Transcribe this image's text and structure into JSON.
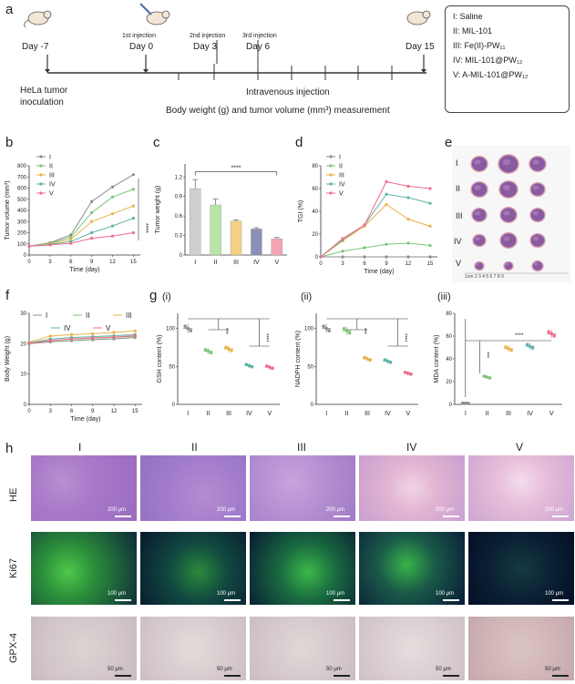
{
  "panel_a": {
    "label": "a",
    "timeline": [
      {
        "day": "Day -7",
        "above": "",
        "below": "HeLa tumor\ninoculation"
      },
      {
        "day": "Day 0",
        "above": "1st injection",
        "below": ""
      },
      {
        "day": "Day 3",
        "above": "2nd injection",
        "below": ""
      },
      {
        "day": "Day 6",
        "above": "3rd injection",
        "below": ""
      },
      {
        "day": "Day 15",
        "above": "",
        "below": ""
      }
    ],
    "iv_text": "Intravenous injection",
    "measure_text": "Body weight (g) and tumor volume (mm³) measurement",
    "legend": [
      "I: Saline",
      "II: MIL-101",
      "III: Fe(II)-PW₁₁",
      "IV: MIL-101@PW₁₂",
      "V: A-MIL-101@PW₁₂"
    ]
  },
  "panel_b": {
    "label": "b"
  },
  "panel_c": {
    "label": "c"
  },
  "panel_d": {
    "label": "d"
  },
  "panel_e": {
    "label": "e",
    "rows": [
      "I",
      "II",
      "III",
      "IV",
      "V"
    ],
    "ruler": "1cm  2    3    4    5    6    7    8    9"
  },
  "panel_f": {
    "label": "f"
  },
  "panel_g": {
    "label": "g",
    "sub": [
      "(i)",
      "(ii)",
      "(iii)"
    ]
  },
  "panel_h": {
    "label": "h",
    "cols": [
      "I",
      "II",
      "III",
      "IV",
      "V"
    ],
    "rows": [
      "HE",
      "Ki67",
      "GPX-4"
    ],
    "scale_he": "200 μm",
    "scale_ki": "100 μm",
    "scale_gpx": "50 μm"
  },
  "colors": {
    "I": "#8c8c8c",
    "II": "#7cc67a",
    "III": "#e8b34a",
    "IV": "#5db3a5",
    "V": "#f06b8a",
    "red": "#e85a4f",
    "orange": "#f0a64a",
    "green": "#8ccf7a",
    "teal": "#6fbfb0"
  },
  "chart_data": [
    {
      "id": "b",
      "type": "line",
      "xlabel": "Time (day)",
      "ylabel": "Tumor volume (mm³)",
      "x": [
        0,
        3,
        6,
        9,
        12,
        15
      ],
      "xlim": [
        0,
        16
      ],
      "ylim": [
        0,
        800
      ],
      "yticks": [
        0,
        100,
        200,
        300,
        400,
        500,
        600,
        700,
        800
      ],
      "series": [
        {
          "name": "I",
          "values": [
            80,
            110,
            180,
            480,
            610,
            720
          ]
        },
        {
          "name": "II",
          "values": [
            80,
            105,
            160,
            380,
            520,
            590
          ]
        },
        {
          "name": "III",
          "values": [
            80,
            100,
            140,
            300,
            370,
            440
          ]
        },
        {
          "name": "IV",
          "values": [
            80,
            95,
            120,
            200,
            260,
            330
          ]
        },
        {
          "name": "V",
          "values": [
            80,
            90,
            105,
            150,
            170,
            200
          ]
        }
      ],
      "annotation": "****"
    },
    {
      "id": "c",
      "type": "bar",
      "ylabel": "Tumor weight (g)",
      "categories": [
        "I",
        "II",
        "III",
        "IV",
        "V"
      ],
      "values": [
        1.02,
        0.77,
        0.52,
        0.4,
        0.25
      ],
      "errors": [
        0.14,
        0.09,
        0.02,
        0.02,
        0.02
      ],
      "ylim": [
        0,
        1.4
      ],
      "yticks": [
        0,
        0.3,
        0.6,
        0.9,
        1.2
      ],
      "annotation": "****"
    },
    {
      "id": "d",
      "type": "line",
      "xlabel": "Time (day)",
      "ylabel": "TGI (%)",
      "x": [
        0,
        3,
        6,
        9,
        12,
        15
      ],
      "xlim": [
        0,
        16
      ],
      "ylim": [
        0,
        80
      ],
      "yticks": [
        0,
        20,
        40,
        60,
        80
      ],
      "series": [
        {
          "name": "I",
          "values": [
            0,
            0,
            0,
            0,
            0,
            0
          ]
        },
        {
          "name": "II",
          "values": [
            0,
            5,
            8,
            11,
            12,
            10
          ]
        },
        {
          "name": "III",
          "values": [
            0,
            14,
            27,
            46,
            33,
            27
          ]
        },
        {
          "name": "IV",
          "values": [
            0,
            15,
            28,
            55,
            52,
            47
          ]
        },
        {
          "name": "V",
          "values": [
            0,
            16,
            28,
            66,
            62,
            60
          ]
        }
      ]
    },
    {
      "id": "f",
      "type": "line",
      "xlabel": "Time (day)",
      "ylabel": "Body Weight (g)",
      "x": [
        0,
        3,
        6,
        9,
        12,
        15
      ],
      "xlim": [
        0,
        16
      ],
      "ylim": [
        0,
        30
      ],
      "yticks": [
        0,
        10,
        20,
        30
      ],
      "series": [
        {
          "name": "I",
          "values": [
            20.0,
            20.6,
            21.0,
            21.3,
            21.6,
            22.0
          ]
        },
        {
          "name": "II",
          "values": [
            20.2,
            21.0,
            21.5,
            21.8,
            22.1,
            22.4
          ]
        },
        {
          "name": "III",
          "values": [
            20.5,
            22.5,
            23.0,
            23.3,
            23.7,
            24.2
          ]
        },
        {
          "name": "IV",
          "values": [
            20.3,
            21.5,
            22.0,
            22.3,
            22.6,
            23.0
          ]
        },
        {
          "name": "V",
          "values": [
            20.1,
            21.0,
            21.6,
            21.9,
            22.2,
            22.6
          ]
        }
      ]
    },
    {
      "id": "g_i",
      "type": "scatter",
      "ylabel": "GSH content (%)",
      "categories": [
        "I",
        "II",
        "III",
        "IV",
        "V"
      ],
      "ylim": [
        0,
        120
      ],
      "yticks": [
        0,
        50,
        100
      ],
      "values": [
        100,
        70,
        73,
        51,
        49
      ],
      "annotations": [
        "***",
        "****"
      ]
    },
    {
      "id": "g_ii",
      "type": "scatter",
      "ylabel": "NADPH content (%)",
      "categories": [
        "I",
        "II",
        "III",
        "IV",
        "V"
      ],
      "ylim": [
        0,
        120
      ],
      "yticks": [
        0,
        50,
        100
      ],
      "values": [
        100,
        97,
        60,
        57,
        41
      ],
      "annotations": [
        "***",
        "****"
      ]
    },
    {
      "id": "g_iii",
      "type": "scatter",
      "ylabel": "MDA content (%)",
      "categories": [
        "I",
        "II",
        "III",
        "IV",
        "V"
      ],
      "ylim": [
        0,
        80
      ],
      "yticks": [
        0,
        20,
        40,
        60,
        80
      ],
      "values": [
        1,
        24,
        49,
        51,
        62
      ],
      "annotations": [
        "***",
        "****"
      ]
    }
  ]
}
